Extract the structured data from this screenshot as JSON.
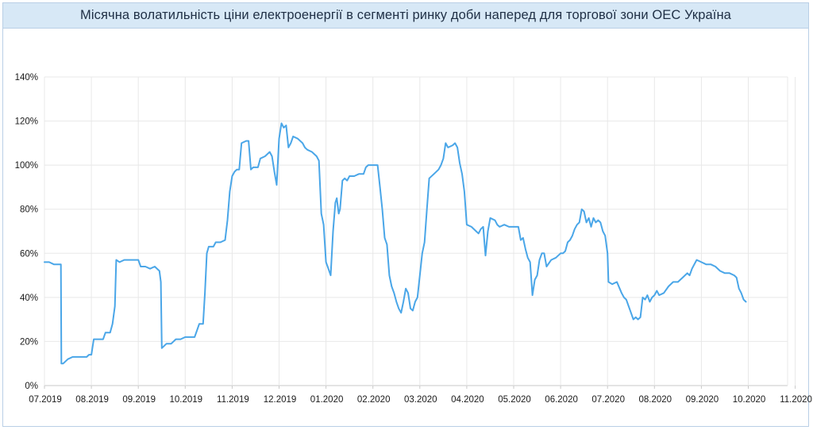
{
  "chart_data": {
    "type": "line",
    "title": "Місячна волатильність ціни електроенергії в сегменті ринку доби наперед для торгової зони ОЕС Україна",
    "xlabel": "",
    "ylabel": "",
    "ylim": [
      0,
      140
    ],
    "y_ticks": [
      "0%",
      "20%",
      "40%",
      "60%",
      "80%",
      "100%",
      "120%",
      "140%"
    ],
    "x_ticks": [
      "07.2019",
      "08.2019",
      "09.2019",
      "10.2019",
      "11.2019",
      "12.2019",
      "01.2020",
      "02.2020",
      "03.2020",
      "04.2020",
      "05.2020",
      "06.2020",
      "07.2020",
      "08.2020",
      "09.2020",
      "10.2020",
      "11.2020"
    ],
    "x_range_months": [
      0,
      17.5
    ],
    "grid": true,
    "line_color": "#4aa6e8",
    "series": [
      {
        "values": [
          [
            0.0,
            56
          ],
          [
            0.1,
            56
          ],
          [
            0.2,
            55
          ],
          [
            0.3,
            55
          ],
          [
            0.35,
            55
          ],
          [
            0.36,
            10
          ],
          [
            0.4,
            10
          ],
          [
            0.5,
            12
          ],
          [
            0.6,
            13
          ],
          [
            0.7,
            13
          ],
          [
            0.8,
            13
          ],
          [
            0.9,
            13
          ],
          [
            0.95,
            14
          ],
          [
            1.0,
            14
          ],
          [
            1.05,
            21
          ],
          [
            1.15,
            21
          ],
          [
            1.25,
            21
          ],
          [
            1.3,
            24
          ],
          [
            1.4,
            24
          ],
          [
            1.45,
            28
          ],
          [
            1.5,
            36
          ],
          [
            1.53,
            57
          ],
          [
            1.6,
            56
          ],
          [
            1.7,
            57
          ],
          [
            1.8,
            57
          ],
          [
            1.9,
            57
          ],
          [
            2.0,
            57
          ],
          [
            2.05,
            54
          ],
          [
            2.15,
            54
          ],
          [
            2.25,
            53
          ],
          [
            2.35,
            54
          ],
          [
            2.45,
            52
          ],
          [
            2.48,
            47
          ],
          [
            2.5,
            17
          ],
          [
            2.6,
            19
          ],
          [
            2.7,
            19
          ],
          [
            2.8,
            21
          ],
          [
            2.9,
            21
          ],
          [
            3.0,
            22
          ],
          [
            3.1,
            22
          ],
          [
            3.2,
            22
          ],
          [
            3.25,
            25
          ],
          [
            3.3,
            28
          ],
          [
            3.38,
            28
          ],
          [
            3.42,
            42
          ],
          [
            3.46,
            60
          ],
          [
            3.5,
            63
          ],
          [
            3.6,
            63
          ],
          [
            3.65,
            65
          ],
          [
            3.75,
            65
          ],
          [
            3.85,
            66
          ],
          [
            3.9,
            75
          ],
          [
            3.95,
            88
          ],
          [
            4.0,
            95
          ],
          [
            4.05,
            97
          ],
          [
            4.1,
            98
          ],
          [
            4.15,
            98
          ],
          [
            4.2,
            110
          ],
          [
            4.3,
            111
          ],
          [
            4.35,
            111
          ],
          [
            4.4,
            98
          ],
          [
            4.45,
            99
          ],
          [
            4.5,
            99
          ],
          [
            4.55,
            99
          ],
          [
            4.6,
            103
          ],
          [
            4.7,
            104
          ],
          [
            4.8,
            106
          ],
          [
            4.85,
            104
          ],
          [
            4.9,
            97
          ],
          [
            4.95,
            91
          ],
          [
            5.0,
            112
          ],
          [
            5.05,
            119
          ],
          [
            5.1,
            117
          ],
          [
            5.15,
            118
          ],
          [
            5.2,
            108
          ],
          [
            5.25,
            110
          ],
          [
            5.3,
            113
          ],
          [
            5.4,
            112
          ],
          [
            5.45,
            111
          ],
          [
            5.5,
            110
          ],
          [
            5.55,
            108
          ],
          [
            5.6,
            107
          ],
          [
            5.7,
            106
          ],
          [
            5.8,
            104
          ],
          [
            5.85,
            102
          ],
          [
            5.9,
            78
          ],
          [
            5.95,
            73
          ],
          [
            6.0,
            56
          ],
          [
            6.05,
            53
          ],
          [
            6.1,
            50
          ],
          [
            6.15,
            70
          ],
          [
            6.2,
            83
          ],
          [
            6.23,
            85
          ],
          [
            6.27,
            78
          ],
          [
            6.3,
            80
          ],
          [
            6.35,
            93
          ],
          [
            6.4,
            94
          ],
          [
            6.45,
            93
          ],
          [
            6.5,
            95
          ],
          [
            6.6,
            95
          ],
          [
            6.7,
            96
          ],
          [
            6.8,
            96
          ],
          [
            6.85,
            99
          ],
          [
            6.9,
            100
          ],
          [
            7.0,
            100
          ],
          [
            7.1,
            100
          ],
          [
            7.15,
            90
          ],
          [
            7.2,
            80
          ],
          [
            7.25,
            67
          ],
          [
            7.3,
            64
          ],
          [
            7.35,
            50
          ],
          [
            7.4,
            45
          ],
          [
            7.45,
            42
          ],
          [
            7.5,
            38
          ],
          [
            7.55,
            35
          ],
          [
            7.6,
            33
          ],
          [
            7.65,
            38
          ],
          [
            7.7,
            44
          ],
          [
            7.75,
            42
          ],
          [
            7.8,
            35
          ],
          [
            7.85,
            34
          ],
          [
            7.9,
            38
          ],
          [
            7.95,
            40
          ],
          [
            8.0,
            50
          ],
          [
            8.05,
            60
          ],
          [
            8.1,
            65
          ],
          [
            8.15,
            80
          ],
          [
            8.2,
            94
          ],
          [
            8.3,
            96
          ],
          [
            8.4,
            98
          ],
          [
            8.45,
            100
          ],
          [
            8.5,
            103
          ],
          [
            8.55,
            110
          ],
          [
            8.6,
            108
          ],
          [
            8.7,
            109
          ],
          [
            8.75,
            110
          ],
          [
            8.8,
            108
          ],
          [
            8.85,
            101
          ],
          [
            8.9,
            96
          ],
          [
            8.95,
            88
          ],
          [
            9.0,
            73
          ],
          [
            9.1,
            72
          ],
          [
            9.2,
            70
          ],
          [
            9.25,
            69
          ],
          [
            9.3,
            71
          ],
          [
            9.35,
            72
          ],
          [
            9.4,
            59
          ],
          [
            9.45,
            70
          ],
          [
            9.5,
            76
          ],
          [
            9.6,
            75
          ],
          [
            9.65,
            73
          ],
          [
            9.7,
            72
          ],
          [
            9.8,
            73
          ],
          [
            9.9,
            72
          ],
          [
            10.0,
            72
          ],
          [
            10.1,
            72
          ],
          [
            10.15,
            66
          ],
          [
            10.2,
            67
          ],
          [
            10.25,
            62
          ],
          [
            10.3,
            58
          ],
          [
            10.35,
            56
          ],
          [
            10.4,
            41
          ],
          [
            10.45,
            48
          ],
          [
            10.5,
            50
          ],
          [
            10.55,
            57
          ],
          [
            10.6,
            60
          ],
          [
            10.65,
            60
          ],
          [
            10.7,
            54
          ],
          [
            10.8,
            57
          ],
          [
            10.9,
            58
          ],
          [
            11.0,
            60
          ],
          [
            11.05,
            60
          ],
          [
            11.1,
            61
          ],
          [
            11.15,
            65
          ],
          [
            11.2,
            66
          ],
          [
            11.25,
            68
          ],
          [
            11.3,
            71
          ],
          [
            11.35,
            73
          ],
          [
            11.4,
            74
          ],
          [
            11.45,
            80
          ],
          [
            11.5,
            79
          ],
          [
            11.55,
            74
          ],
          [
            11.6,
            76
          ],
          [
            11.65,
            72
          ],
          [
            11.7,
            76
          ],
          [
            11.75,
            74
          ],
          [
            11.8,
            75
          ],
          [
            11.85,
            74
          ],
          [
            11.9,
            70
          ],
          [
            11.95,
            68
          ],
          [
            12.0,
            60
          ],
          [
            12.02,
            47
          ],
          [
            12.1,
            46
          ],
          [
            12.2,
            47
          ],
          [
            12.3,
            42
          ],
          [
            12.35,
            40
          ],
          [
            12.4,
            39
          ],
          [
            12.45,
            36
          ],
          [
            12.5,
            33
          ],
          [
            12.55,
            30
          ],
          [
            12.6,
            31
          ],
          [
            12.65,
            30
          ],
          [
            12.7,
            31
          ],
          [
            12.75,
            40
          ],
          [
            12.8,
            39
          ],
          [
            12.85,
            41
          ],
          [
            12.9,
            38
          ],
          [
            12.95,
            40
          ],
          [
            13.0,
            41
          ],
          [
            13.05,
            43
          ],
          [
            13.1,
            41
          ],
          [
            13.2,
            42
          ],
          [
            13.3,
            45
          ],
          [
            13.4,
            47
          ],
          [
            13.5,
            47
          ],
          [
            13.6,
            49
          ],
          [
            13.7,
            51
          ],
          [
            13.75,
            50
          ],
          [
            13.8,
            53
          ],
          [
            13.85,
            55
          ],
          [
            13.9,
            57
          ],
          [
            14.0,
            56
          ],
          [
            14.1,
            55
          ],
          [
            14.2,
            55
          ],
          [
            14.3,
            54
          ],
          [
            14.4,
            52
          ],
          [
            14.5,
            51
          ],
          [
            14.6,
            51
          ],
          [
            14.7,
            50
          ],
          [
            14.75,
            49
          ],
          [
            14.8,
            44
          ],
          [
            14.85,
            42
          ],
          [
            14.9,
            39
          ],
          [
            14.95,
            38
          ]
        ]
      }
    ]
  }
}
